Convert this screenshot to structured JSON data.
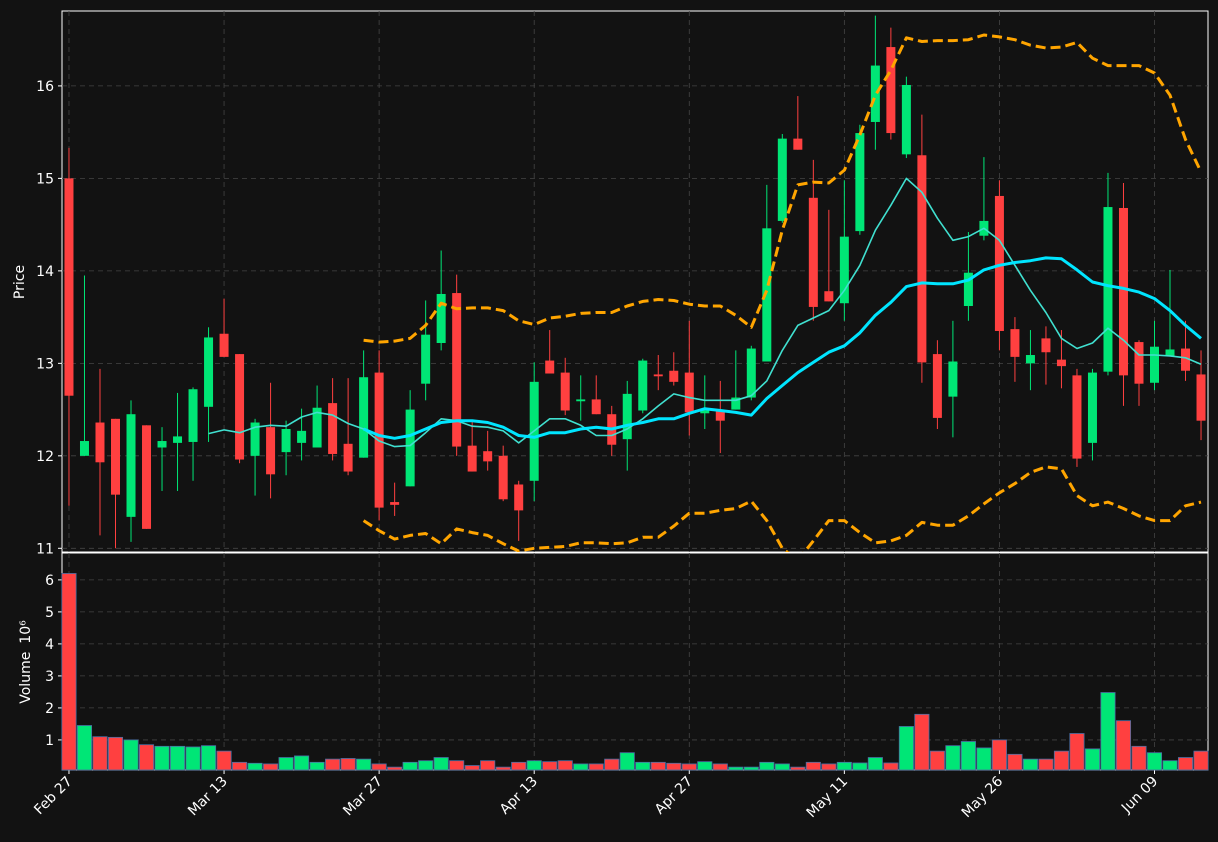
{
  "chart_data": [
    {
      "type": "candlestick",
      "y_label": "Price",
      "xlim": [
        -0.45,
        73.45
      ],
      "ylim": [
        10.96,
        16.81
      ],
      "yticks": [
        11,
        12,
        13,
        14,
        15,
        16
      ],
      "grid": true,
      "up_color": "#00e676",
      "down_color": "#ff4040",
      "open": [
        15.0,
        12.0,
        12.36,
        12.4,
        11.34,
        12.33,
        12.09,
        12.14,
        12.15,
        12.53,
        13.32,
        13.1,
        12.0,
        12.31,
        12.04,
        12.14,
        12.09,
        12.57,
        12.13,
        11.98,
        12.9,
        11.5,
        11.67,
        12.78,
        13.22,
        13.76,
        12.11,
        12.05,
        12.0,
        11.69,
        11.73,
        13.03,
        12.9,
        12.59,
        12.61,
        12.45,
        12.18,
        12.49,
        12.88,
        12.92,
        12.9,
        12.46,
        12.49,
        12.5,
        12.63,
        13.02,
        14.54,
        15.43,
        14.79,
        13.78,
        13.65,
        14.43,
        15.61,
        16.42,
        15.26,
        15.25,
        13.1,
        12.64,
        13.62,
        14.38,
        14.81,
        13.37,
        13.0,
        13.27,
        13.04,
        12.87,
        12.14,
        12.91,
        14.68,
        13.23,
        12.79,
        13.08,
        13.16,
        12.88
      ],
      "high": [
        15.33,
        13.95,
        12.94,
        12.4,
        12.6,
        12.33,
        12.31,
        12.68,
        12.74,
        13.39,
        13.7,
        13.1,
        12.4,
        12.79,
        12.38,
        12.51,
        12.76,
        12.84,
        12.84,
        13.14,
        13.14,
        11.71,
        12.71,
        13.68,
        14.22,
        13.96,
        12.38,
        12.27,
        12.11,
        11.73,
        13.01,
        13.36,
        13.06,
        12.87,
        12.87,
        12.54,
        12.81,
        13.05,
        13.09,
        13.12,
        13.46,
        12.87,
        12.81,
        13.14,
        13.19,
        14.93,
        15.48,
        15.89,
        15.2,
        14.66,
        14.98,
        15.58,
        16.76,
        16.63,
        16.1,
        15.69,
        13.25,
        13.46,
        14.42,
        15.23,
        14.98,
        13.5,
        13.36,
        13.4,
        13.36,
        12.94,
        12.94,
        15.06,
        14.95,
        13.25,
        13.46,
        14.01,
        13.46,
        13.14
      ],
      "low": [
        11.46,
        12.0,
        11.14,
        11.0,
        11.07,
        11.21,
        11.62,
        11.62,
        11.73,
        12.15,
        13.07,
        11.92,
        11.57,
        11.54,
        11.79,
        11.95,
        12.09,
        11.95,
        11.79,
        11.98,
        11.3,
        11.35,
        11.67,
        12.6,
        13.14,
        12.0,
        11.83,
        11.84,
        11.51,
        11.08,
        11.51,
        12.89,
        12.44,
        12.38,
        12.45,
        12.0,
        11.84,
        12.46,
        12.71,
        12.76,
        12.22,
        12.29,
        12.03,
        12.5,
        12.6,
        13.02,
        14.52,
        15.31,
        13.46,
        13.67,
        13.46,
        14.39,
        15.31,
        15.42,
        15.22,
        12.79,
        12.29,
        12.2,
        13.46,
        14.33,
        13.14,
        12.8,
        12.71,
        12.77,
        12.73,
        11.88,
        11.95,
        12.87,
        12.54,
        12.54,
        12.71,
        13.08,
        12.81,
        12.17
      ],
      "close": [
        12.65,
        12.16,
        11.93,
        11.58,
        12.45,
        11.21,
        12.16,
        12.21,
        12.72,
        13.28,
        13.07,
        11.96,
        12.36,
        11.8,
        12.29,
        12.27,
        12.52,
        12.02,
        11.83,
        12.85,
        11.44,
        11.47,
        12.5,
        13.31,
        13.75,
        12.1,
        11.83,
        11.94,
        11.53,
        11.41,
        12.8,
        12.89,
        12.49,
        12.61,
        12.45,
        12.12,
        12.67,
        13.03,
        12.86,
        12.8,
        12.47,
        12.49,
        12.38,
        12.63,
        13.16,
        14.46,
        15.43,
        15.31,
        13.61,
        13.67,
        14.37,
        15.49,
        16.22,
        15.49,
        16.01,
        13.01,
        12.41,
        13.02,
        13.98,
        14.54,
        13.35,
        13.07,
        13.09,
        13.12,
        12.97,
        11.97,
        12.9,
        14.69,
        12.87,
        12.78,
        13.18,
        13.15,
        12.92,
        12.38
      ],
      "lines": [
        {
          "color": "#40e0d0",
          "linewidth": 1.6,
          "dashed": false,
          "values": [
            null,
            null,
            null,
            null,
            null,
            null,
            null,
            null,
            null,
            12.24,
            12.28,
            12.25,
            12.31,
            12.33,
            12.32,
            12.42,
            12.47,
            12.44,
            12.35,
            12.29,
            12.16,
            12.1,
            12.11,
            12.25,
            12.4,
            12.38,
            12.32,
            12.31,
            12.27,
            12.14,
            12.27,
            12.4,
            12.4,
            12.33,
            12.22,
            12.22,
            12.29,
            12.4,
            12.54,
            12.67,
            12.63,
            12.6,
            12.6,
            12.6,
            12.65,
            12.81,
            13.14,
            13.41,
            13.49,
            13.57,
            13.79,
            14.06,
            14.44,
            14.71,
            15.0,
            14.85,
            14.57,
            14.33,
            14.37,
            14.46,
            14.33,
            14.06,
            13.79,
            13.55,
            13.27,
            13.16,
            13.22,
            13.38,
            13.25,
            13.09,
            13.09,
            13.08,
            13.06,
            12.99
          ]
        },
        {
          "color": "#00e5ff",
          "linewidth": 3,
          "dashed": false,
          "values": [
            null,
            null,
            null,
            null,
            null,
            null,
            null,
            null,
            null,
            null,
            null,
            null,
            null,
            null,
            null,
            null,
            null,
            null,
            null,
            12.29,
            12.22,
            12.19,
            12.22,
            12.29,
            12.36,
            12.38,
            12.38,
            12.36,
            12.31,
            12.22,
            12.2,
            12.25,
            12.25,
            12.29,
            12.31,
            12.29,
            12.33,
            12.36,
            12.4,
            12.4,
            12.46,
            12.51,
            12.49,
            12.47,
            12.44,
            12.62,
            12.76,
            12.9,
            13.01,
            13.12,
            13.19,
            13.33,
            13.52,
            13.66,
            13.83,
            13.87,
            13.86,
            13.86,
            13.9,
            14.01,
            14.06,
            14.09,
            14.11,
            14.14,
            14.13,
            14.01,
            13.88,
            13.84,
            13.81,
            13.77,
            13.7,
            13.57,
            13.41,
            13.27
          ]
        },
        {
          "color": "#ffa500",
          "linewidth": 3,
          "dashed": true,
          "values": [
            null,
            null,
            null,
            null,
            null,
            null,
            null,
            null,
            null,
            null,
            null,
            null,
            null,
            null,
            null,
            null,
            null,
            null,
            null,
            13.25,
            13.23,
            13.24,
            13.27,
            13.41,
            13.65,
            13.59,
            13.6,
            13.6,
            13.57,
            13.46,
            13.42,
            13.49,
            13.51,
            13.54,
            13.55,
            13.55,
            13.62,
            13.67,
            13.69,
            13.68,
            13.64,
            13.62,
            13.62,
            13.52,
            13.39,
            13.79,
            14.44,
            14.93,
            14.96,
            14.95,
            15.09,
            15.47,
            15.9,
            16.17,
            16.52,
            16.48,
            16.49,
            16.49,
            16.5,
            16.55,
            16.53,
            16.5,
            16.44,
            16.41,
            16.42,
            16.47,
            16.3,
            16.22,
            16.22,
            16.22,
            16.14,
            15.9,
            15.42,
            15.07
          ]
        },
        {
          "color": "#ffa500",
          "linewidth": 3,
          "dashed": true,
          "values": [
            null,
            null,
            null,
            null,
            null,
            null,
            null,
            null,
            null,
            null,
            null,
            null,
            null,
            null,
            null,
            null,
            null,
            null,
            null,
            11.3,
            11.19,
            11.1,
            11.14,
            11.16,
            11.05,
            11.21,
            11.17,
            11.14,
            11.05,
            10.97,
            11.0,
            11.01,
            11.02,
            11.06,
            11.06,
            11.05,
            11.06,
            11.12,
            11.12,
            11.24,
            11.38,
            11.38,
            11.41,
            11.43,
            11.51,
            11.3,
            11.0,
            10.87,
            11.08,
            11.3,
            11.3,
            11.17,
            11.06,
            11.08,
            11.14,
            11.28,
            11.25,
            11.25,
            11.35,
            11.48,
            11.6,
            11.7,
            11.82,
            11.88,
            11.86,
            11.57,
            11.46,
            11.5,
            11.43,
            11.35,
            11.3,
            11.3,
            11.46,
            11.5
          ]
        }
      ]
    },
    {
      "type": "volume",
      "y_label": "Volume",
      "y_unit": "10⁶",
      "xlim": [
        -0.45,
        73.45
      ],
      "ylim": [
        0.06,
        6.84
      ],
      "yticks": [
        1,
        2,
        3,
        4,
        5,
        6
      ],
      "grid": true,
      "edge_color": "#4a6fa5",
      "categories": [
        "Feb 27",
        null,
        null,
        null,
        null,
        null,
        null,
        null,
        null,
        null,
        "Mar 13",
        null,
        null,
        null,
        null,
        null,
        null,
        null,
        null,
        null,
        "Mar 27",
        null,
        null,
        null,
        null,
        null,
        null,
        null,
        null,
        null,
        "Apr 13",
        null,
        null,
        null,
        null,
        null,
        null,
        null,
        null,
        null,
        "Apr 27",
        null,
        null,
        null,
        null,
        null,
        null,
        null,
        null,
        null,
        "May 11",
        null,
        null,
        null,
        null,
        null,
        null,
        null,
        null,
        null,
        "May 26",
        null,
        null,
        null,
        null,
        null,
        null,
        null,
        null,
        null,
        "Jun 09",
        null,
        null,
        null
      ],
      "values": [
        6.2,
        1.45,
        1.1,
        1.08,
        1.0,
        0.85,
        0.8,
        0.8,
        0.78,
        0.82,
        0.65,
        0.3,
        0.27,
        0.25,
        0.45,
        0.5,
        0.3,
        0.4,
        0.42,
        0.4,
        0.25,
        0.15,
        0.3,
        0.35,
        0.45,
        0.35,
        0.2,
        0.35,
        0.15,
        0.3,
        0.35,
        0.32,
        0.35,
        0.25,
        0.25,
        0.4,
        0.6,
        0.3,
        0.3,
        0.27,
        0.25,
        0.32,
        0.25,
        0.15,
        0.15,
        0.3,
        0.25,
        0.15,
        0.3,
        0.25,
        0.3,
        0.28,
        0.45,
        0.28,
        1.42,
        1.8,
        0.65,
        0.82,
        0.95,
        0.75,
        1.0,
        0.55,
        0.4,
        0.4,
        0.65,
        1.2,
        0.72,
        2.48,
        1.6,
        0.8,
        0.6,
        0.35,
        0.45,
        0.65
      ]
    }
  ]
}
